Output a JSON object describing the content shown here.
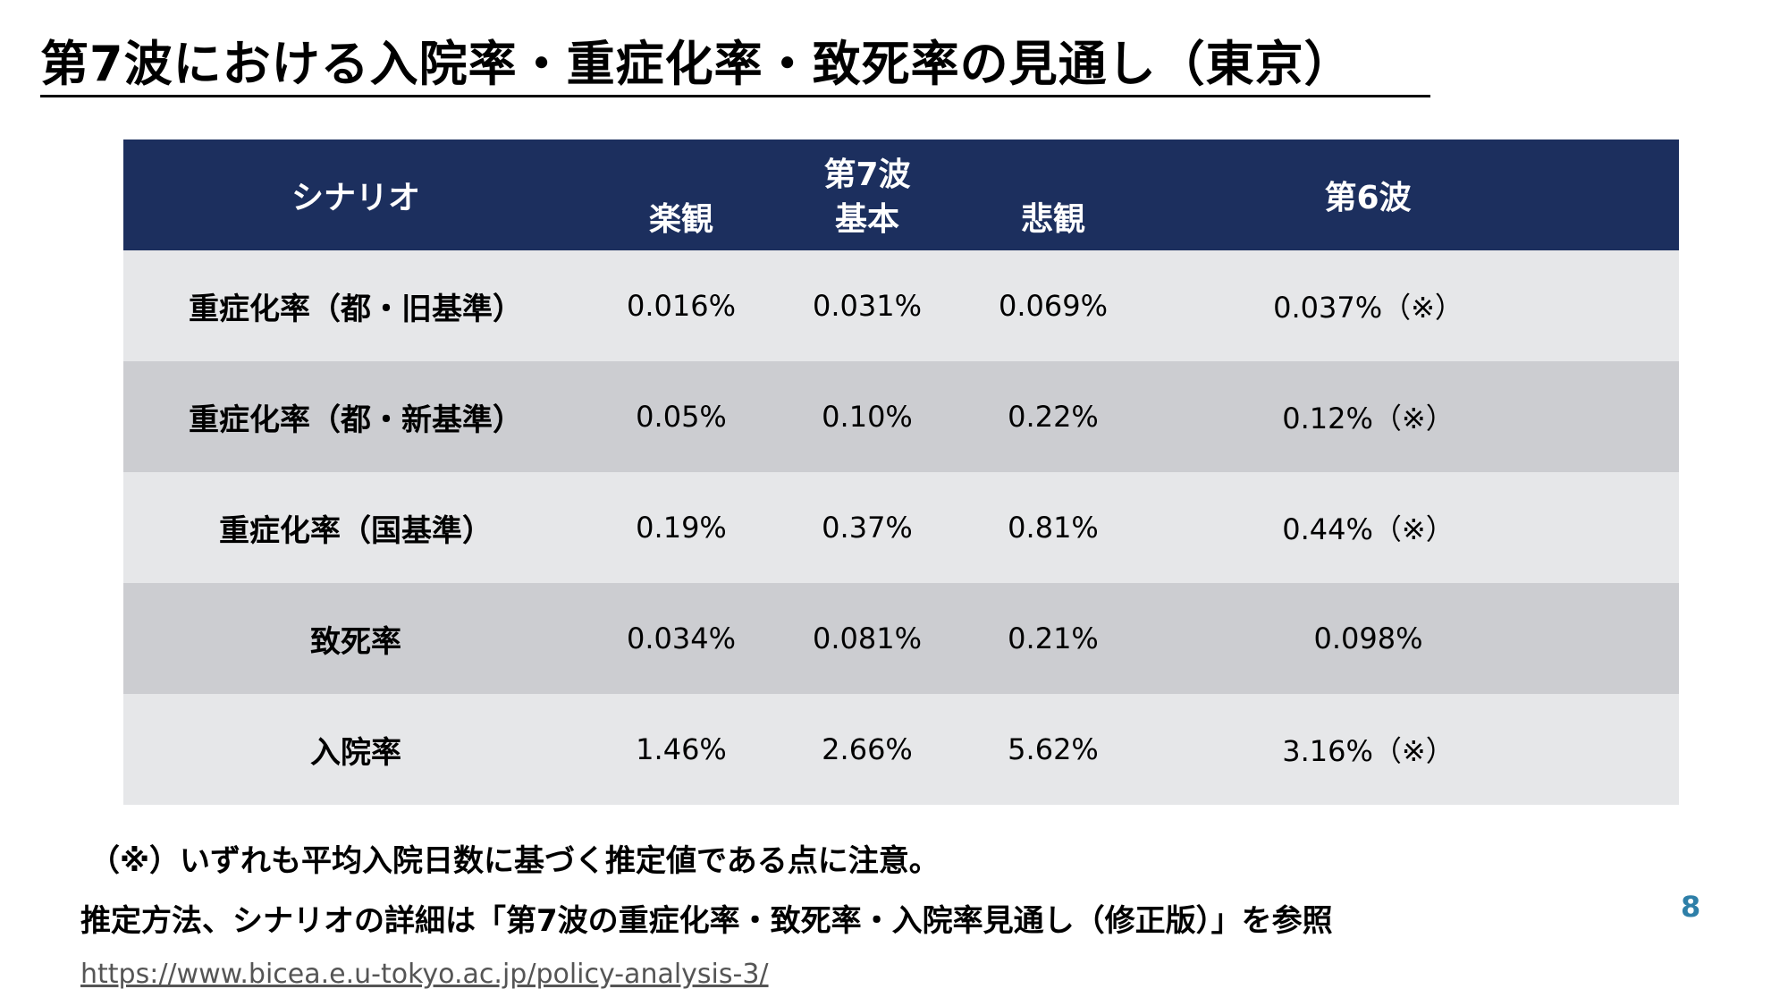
{
  "slide": {
    "title": "第7波における入院率・重症化率・致死率の見通し（東京）",
    "page_number": "8"
  },
  "table": {
    "header": {
      "scenario": "シナリオ",
      "wave7_group": "第7波",
      "wave7_optimistic": "楽観",
      "wave7_base": "基本",
      "wave7_pessimistic": "悲観",
      "wave6": "第6波"
    },
    "rows": [
      {
        "label": "重症化率（都・旧基準）",
        "optimistic": "0.016%",
        "base": "0.031%",
        "pessimistic": "0.069%",
        "wave6": "0.037%（※）"
      },
      {
        "label": "重症化率（都・新基準）",
        "optimistic": "0.05%",
        "base": "0.10%",
        "pessimistic": "0.22%",
        "wave6": "0.12%（※）"
      },
      {
        "label": "重症化率（国基準）",
        "optimistic": "0.19%",
        "base": "0.37%",
        "pessimistic": "0.81%",
        "wave6": "0.44%（※）"
      },
      {
        "label": "致死率",
        "optimistic": "0.034%",
        "base": "0.081%",
        "pessimistic": "0.21%",
        "wave6": "0.098%"
      },
      {
        "label": "入院率",
        "optimistic": "1.46%",
        "base": "2.66%",
        "pessimistic": "5.62%",
        "wave6": "3.16%（※）"
      }
    ]
  },
  "notes": {
    "footnote": "（※）いずれも平均入院日数に基づく推定値である点に注意。",
    "method": "推定方法、シナリオの詳細は「第7波の重症化率・致死率・入院率見通し（修正版）」を参照",
    "url": "https://www.bicea.e.u-tokyo.ac.jp/policy-analysis-3/"
  },
  "colors": {
    "header_bg": "#1c2f5e",
    "row_light": "#e6e7e9",
    "row_dark": "#cccdd1",
    "page_number": "#2e7fa8"
  }
}
